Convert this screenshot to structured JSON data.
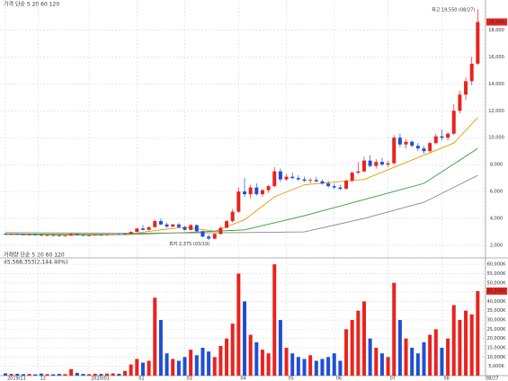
{
  "chart_data": {
    "type": "candlestick",
    "title": "가격 단순 5 20 60 120",
    "volume_title": "거래량 단순 5 20 60 120",
    "volume_note": "45,568,353(2,144.40%)",
    "high_note": "최고 19,550 (08/27)",
    "low_note": "최저 2,375 (03/19)",
    "up_color": "#e8231e",
    "down_color": "#1f4fd1",
    "candles": [
      [
        2850,
        2900,
        2780,
        2820
      ],
      [
        2820,
        2870,
        2790,
        2840
      ],
      [
        2840,
        2880,
        2800,
        2810
      ],
      [
        2810,
        2850,
        2760,
        2790
      ],
      [
        2790,
        2830,
        2750,
        2800
      ],
      [
        2800,
        2840,
        2760,
        2770
      ],
      [
        2770,
        2800,
        2700,
        2720
      ],
      [
        2720,
        2780,
        2690,
        2750
      ],
      [
        2750,
        2790,
        2710,
        2730
      ],
      [
        2730,
        2760,
        2680,
        2700
      ],
      [
        2700,
        2740,
        2660,
        2720
      ],
      [
        2720,
        2900,
        2700,
        2850
      ],
      [
        2850,
        2880,
        2750,
        2760
      ],
      [
        2760,
        2790,
        2700,
        2720
      ],
      [
        2720,
        2760,
        2690,
        2740
      ],
      [
        2740,
        2800,
        2720,
        2780
      ],
      [
        2780,
        2810,
        2740,
        2760
      ],
      [
        2760,
        2820,
        2750,
        2800
      ],
      [
        2800,
        2850,
        2780,
        2830
      ],
      [
        2830,
        2870,
        2790,
        2810
      ],
      [
        2810,
        2900,
        2800,
        2880
      ],
      [
        2880,
        3050,
        2860,
        3000
      ],
      [
        3000,
        3300,
        2980,
        3250
      ],
      [
        3250,
        3500,
        3100,
        3150
      ],
      [
        3150,
        3400,
        3100,
        3350
      ],
      [
        3350,
        3900,
        3300,
        3800
      ],
      [
        3800,
        4000,
        3500,
        3550
      ],
      [
        3550,
        3700,
        3300,
        3400
      ],
      [
        3400,
        3600,
        3350,
        3550
      ],
      [
        3550,
        3650,
        3300,
        3350
      ],
      [
        3350,
        3450,
        3100,
        3150
      ],
      [
        3150,
        3600,
        3100,
        3500
      ],
      [
        3500,
        3550,
        3000,
        3050
      ],
      [
        3050,
        3100,
        2600,
        2650
      ],
      [
        2650,
        2800,
        2375,
        2500
      ],
      [
        2500,
        2900,
        2450,
        2850
      ],
      [
        2850,
        3400,
        2800,
        3300
      ],
      [
        3300,
        3900,
        3250,
        3800
      ],
      [
        3800,
        4700,
        3700,
        4500
      ],
      [
        4500,
        6300,
        4400,
        6000
      ],
      [
        6000,
        7000,
        5600,
        5800
      ],
      [
        5800,
        6500,
        5500,
        6300
      ],
      [
        6300,
        6600,
        5700,
        5800
      ],
      [
        5800,
        6200,
        5600,
        6100
      ],
      [
        6100,
        6500,
        5900,
        6400
      ],
      [
        6400,
        7800,
        6300,
        7500
      ],
      [
        7500,
        7700,
        6700,
        6900
      ],
      [
        6900,
        7300,
        6800,
        7100
      ],
      [
        7100,
        7400,
        6900,
        7000
      ],
      [
        7000,
        7200,
        6800,
        6900
      ],
      [
        6900,
        7100,
        6700,
        6800
      ],
      [
        6800,
        7000,
        6600,
        6850
      ],
      [
        6850,
        7100,
        6700,
        6750
      ],
      [
        6750,
        6900,
        6500,
        6600
      ],
      [
        6600,
        6800,
        6300,
        6400
      ],
      [
        6400,
        6600,
        6150,
        6300
      ],
      [
        6300,
        6500,
        6100,
        6200
      ],
      [
        6200,
        6900,
        6150,
        6800
      ],
      [
        6800,
        7500,
        6700,
        7400
      ],
      [
        7400,
        8200,
        7300,
        7500
      ],
      [
        7500,
        8600,
        7400,
        8300
      ],
      [
        8300,
        8700,
        7800,
        7900
      ],
      [
        7900,
        8400,
        7700,
        8200
      ],
      [
        8200,
        8500,
        7900,
        8000
      ],
      [
        8000,
        8300,
        7800,
        8100
      ],
      [
        8100,
        10200,
        8000,
        10000
      ],
      [
        10000,
        10300,
        9300,
        9500
      ],
      [
        9500,
        9900,
        9200,
        9700
      ],
      [
        9700,
        9800,
        9300,
        9400
      ],
      [
        9400,
        9600,
        9000,
        9200
      ],
      [
        9200,
        9400,
        8800,
        9000
      ],
      [
        9000,
        9700,
        8900,
        9600
      ],
      [
        9600,
        10300,
        9500,
        10100
      ],
      [
        10100,
        10600,
        9800,
        10000
      ],
      [
        10000,
        10400,
        9800,
        10300
      ],
      [
        10300,
        12500,
        10200,
        12000
      ],
      [
        12000,
        13500,
        11800,
        13200
      ],
      [
        13200,
        14500,
        12800,
        14200
      ],
      [
        14200,
        16000,
        13900,
        15500
      ],
      [
        15500,
        19550,
        15400,
        18600
      ]
    ],
    "volume": [
      1200,
      900,
      1000,
      800,
      900,
      700,
      1100,
      800,
      700,
      900,
      800,
      3500,
      1500,
      900,
      800,
      1000,
      900,
      1100,
      1200,
      1000,
      2500,
      6000,
      9000,
      7000,
      8000,
      42000,
      30000,
      12000,
      9000,
      8000,
      10000,
      14000,
      11000,
      15000,
      13000,
      10000,
      16000,
      20000,
      28000,
      55000,
      40000,
      22000,
      18000,
      14000,
      12000,
      60000,
      30000,
      15000,
      12000,
      10000,
      9000,
      11000,
      8000,
      9000,
      10000,
      12000,
      8000,
      25000,
      30000,
      35000,
      40000,
      20000,
      15000,
      12000,
      10000,
      50000,
      30000,
      20000,
      15000,
      12000,
      18000,
      22000,
      25000,
      15000,
      20000,
      38000,
      30000,
      35000,
      33000,
      45568
    ],
    "ma_series": [
      {
        "name": "20",
        "color": "#e69a00",
        "x": [
          0,
          5,
          10,
          15,
          20,
          25,
          30,
          35,
          40,
          45,
          50,
          55,
          60,
          65,
          70,
          75,
          79
        ],
        "values": [
          2800,
          2790,
          2760,
          2770,
          2800,
          3100,
          3350,
          3050,
          3900,
          5600,
          6500,
          6700,
          6900,
          7800,
          8700,
          9600,
          11500
        ]
      },
      {
        "name": "60",
        "color": "#2e9a3a",
        "x": [
          0,
          10,
          20,
          30,
          40,
          50,
          60,
          70,
          79
        ],
        "values": [
          2850,
          2820,
          2800,
          2950,
          3150,
          4200,
          5400,
          6600,
          9200
        ]
      },
      {
        "name": "120",
        "color": "#8a8a8a",
        "x": [
          0,
          20,
          40,
          50,
          60,
          70,
          79
        ],
        "values": [
          2950,
          2900,
          2950,
          3000,
          4000,
          5200,
          7200
        ]
      }
    ],
    "ylim": [
      1200,
      19900
    ],
    "yticks": [
      {
        "value": 2000,
        "label": "2,000"
      },
      {
        "value": 4000,
        "label": "4,000"
      },
      {
        "value": 6000,
        "label": "6,000"
      },
      {
        "value": 8000,
        "label": "8,000"
      },
      {
        "value": 10000,
        "label": "10,000"
      },
      {
        "value": 12000,
        "label": "12,000"
      },
      {
        "value": 14000,
        "label": "14,000"
      },
      {
        "value": 16000,
        "label": "16,000"
      },
      {
        "value": 18000,
        "label": "18,000"
      }
    ],
    "vlim": [
      0,
      62000
    ],
    "vticks": [
      {
        "value": 5000,
        "label": "5,000K"
      },
      {
        "value": 10000,
        "label": "10,000K"
      },
      {
        "value": 15000,
        "label": "15,000K"
      },
      {
        "value": 20000,
        "label": "20,000K"
      },
      {
        "value": 25000,
        "label": "25,000K"
      },
      {
        "value": 30000,
        "label": "30,000K"
      },
      {
        "value": 35000,
        "label": "35,000K"
      },
      {
        "value": 40000,
        "label": "40,000K"
      },
      {
        "value": 45000,
        "label": "45,000K"
      },
      {
        "value": 50000,
        "label": "50,000K"
      },
      {
        "value": 55000,
        "label": "55,000K"
      },
      {
        "value": 60000,
        "label": "60,000K"
      }
    ],
    "xlim": [
      -0.6,
      80
    ],
    "xticks": [
      {
        "value": 0,
        "label": "2019/11"
      },
      {
        "value": 5.5,
        "label": "12"
      },
      {
        "value": 14,
        "label": "2020/01"
      },
      {
        "value": 22,
        "label": "02"
      },
      {
        "value": 30,
        "label": "03"
      },
      {
        "value": 39,
        "label": "04"
      },
      {
        "value": 47,
        "label": "05"
      },
      {
        "value": 55,
        "label": "06"
      },
      {
        "value": 64,
        "label": "07"
      },
      {
        "value": 73,
        "label": "08"
      },
      {
        "value": 80,
        "label": "08/27"
      }
    ],
    "last_price_label": "18,600",
    "last_volume_label": "45,568K",
    "grid": true
  }
}
